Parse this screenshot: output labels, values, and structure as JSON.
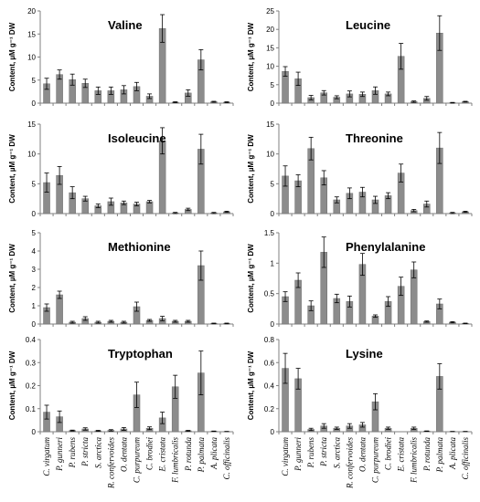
{
  "categories": [
    "C. virgatum",
    "P. gunneri",
    "P. rubens",
    "P. stricta",
    "S. arctica",
    "R. confervoides",
    "O. dentata",
    "C. purpureum",
    "C. brodiei",
    "E. cristata",
    "F. lumbricalis",
    "P. rotunda",
    "P. palmata",
    "A. plicata",
    "C. officinalis"
  ],
  "colors": {
    "bar": "#8c8c8c",
    "bar_edge": "#6e6e6e",
    "axis": "#808080",
    "error": "#000000"
  },
  "chart_data": [
    {
      "type": "bar",
      "title": "Valine",
      "ylabel": "Content, µM g⁻¹ DW",
      "ylim": [
        0,
        20
      ],
      "yticks": [
        "0",
        "5",
        "10",
        "15",
        "20"
      ],
      "values": [
        4.2,
        6.2,
        5.1,
        4.3,
        2.7,
        2.7,
        2.9,
        3.6,
        1.5,
        16.2,
        0.2,
        2.2,
        9.4,
        0.3,
        0.2
      ],
      "errors": [
        1.2,
        1.0,
        1.2,
        0.9,
        0.8,
        0.8,
        0.9,
        0.9,
        0.5,
        3.0,
        0.1,
        0.7,
        2.2,
        0.1,
        0.1
      ]
    },
    {
      "type": "bar",
      "title": "Leucine",
      "ylabel": "Content, µM g⁻¹ DW",
      "ylim": [
        0,
        25
      ],
      "yticks": [
        "0",
        "5",
        "10",
        "15",
        "20",
        "25"
      ],
      "values": [
        8.6,
        6.6,
        1.5,
        2.8,
        1.6,
        2.5,
        2.4,
        3.4,
        2.5,
        12.7,
        0.4,
        1.3,
        19.0,
        0.1,
        0.4
      ],
      "errors": [
        1.3,
        1.8,
        0.6,
        0.6,
        0.4,
        0.8,
        0.6,
        1.0,
        0.5,
        3.5,
        0.2,
        0.5,
        4.7,
        0.1,
        0.1
      ]
    },
    {
      "type": "bar",
      "title": "Isoleucine",
      "ylabel": "Content, µM g⁻¹ DW",
      "ylim": [
        0,
        15
      ],
      "yticks": [
        "0",
        "5",
        "10",
        "15"
      ],
      "values": [
        5.2,
        6.4,
        3.5,
        2.5,
        1.3,
        2.0,
        1.8,
        1.6,
        2.0,
        12.2,
        0.1,
        0.7,
        10.8,
        0.1,
        0.3
      ],
      "errors": [
        1.6,
        1.5,
        1.0,
        0.4,
        0.3,
        0.6,
        0.3,
        0.3,
        0.2,
        2.2,
        0.1,
        0.2,
        2.5,
        0.1,
        0.1
      ]
    },
    {
      "type": "bar",
      "title": "Threonine",
      "ylabel": "Content, µM g⁻¹ DW",
      "ylim": [
        0,
        15
      ],
      "yticks": [
        "0",
        "5",
        "10",
        "15"
      ],
      "values": [
        6.3,
        5.5,
        10.9,
        6.0,
        2.3,
        3.4,
        3.6,
        2.3,
        3.0,
        6.8,
        0.5,
        1.6,
        11.0,
        0.1,
        0.3
      ],
      "errors": [
        1.7,
        1.0,
        1.9,
        1.2,
        0.5,
        0.9,
        0.8,
        0.6,
        0.5,
        1.5,
        0.2,
        0.5,
        2.6,
        0.1,
        0.1
      ]
    },
    {
      "type": "bar",
      "title": "Methionine",
      "ylabel": "Content, µM g⁻¹ DW",
      "ylim": [
        0,
        5
      ],
      "yticks": [
        "0",
        "1",
        "2",
        "3",
        "4",
        "5"
      ],
      "values": [
        0.9,
        1.6,
        0.1,
        0.3,
        0.1,
        0.15,
        0.1,
        0.95,
        0.2,
        0.3,
        0.15,
        0.15,
        3.2,
        0.03,
        0.03
      ],
      "errors": [
        0.2,
        0.2,
        0.05,
        0.1,
        0.05,
        0.05,
        0.05,
        0.25,
        0.05,
        0.12,
        0.05,
        0.05,
        0.8,
        0.02,
        0.02
      ]
    },
    {
      "type": "bar",
      "title": "Phenylalanine",
      "ylabel": "Content, µM g⁻¹ DW",
      "ylim": [
        0,
        1.5
      ],
      "yticks": [
        "0",
        "0.5",
        "1",
        "1.5"
      ],
      "values": [
        0.45,
        0.72,
        0.3,
        1.18,
        0.42,
        0.37,
        0.98,
        0.13,
        0.37,
        0.62,
        0.89,
        0.04,
        0.33,
        0.03,
        0.01
      ],
      "errors": [
        0.08,
        0.12,
        0.08,
        0.25,
        0.07,
        0.09,
        0.18,
        0.02,
        0.08,
        0.15,
        0.13,
        0.01,
        0.08,
        0.01,
        0.005
      ]
    },
    {
      "type": "bar",
      "title": "Tryptophan",
      "ylabel": "Content, µM g⁻¹ DW",
      "ylim": [
        0,
        0.4
      ],
      "yticks": [
        "0",
        "0.1",
        "0.2",
        "0.3",
        "0.4"
      ],
      "values": [
        0.085,
        0.065,
        0.005,
        0.012,
        0.004,
        0.006,
        0.012,
        0.16,
        0.015,
        0.06,
        0.195,
        0.004,
        0.255,
        0.002,
        0.001
      ],
      "errors": [
        0.03,
        0.025,
        0.002,
        0.005,
        0.002,
        0.003,
        0.006,
        0.055,
        0.006,
        0.025,
        0.05,
        0.002,
        0.095,
        0.001,
        0.0005
      ]
    },
    {
      "type": "bar",
      "title": "Lysine",
      "ylabel": "Content, µM g⁻¹ DW",
      "ylim": [
        0,
        0.8
      ],
      "yticks": [
        "0",
        "0.2",
        "0.4",
        "0.6",
        "0.8"
      ],
      "values": [
        0.55,
        0.46,
        0.02,
        0.05,
        0.03,
        0.05,
        0.06,
        0.26,
        0.03,
        0.0,
        0.03,
        0.005,
        0.48,
        0.002,
        0.002
      ],
      "errors": [
        0.13,
        0.09,
        0.01,
        0.02,
        0.01,
        0.02,
        0.02,
        0.07,
        0.01,
        0.0,
        0.01,
        0.002,
        0.11,
        0.001,
        0.001
      ]
    }
  ]
}
